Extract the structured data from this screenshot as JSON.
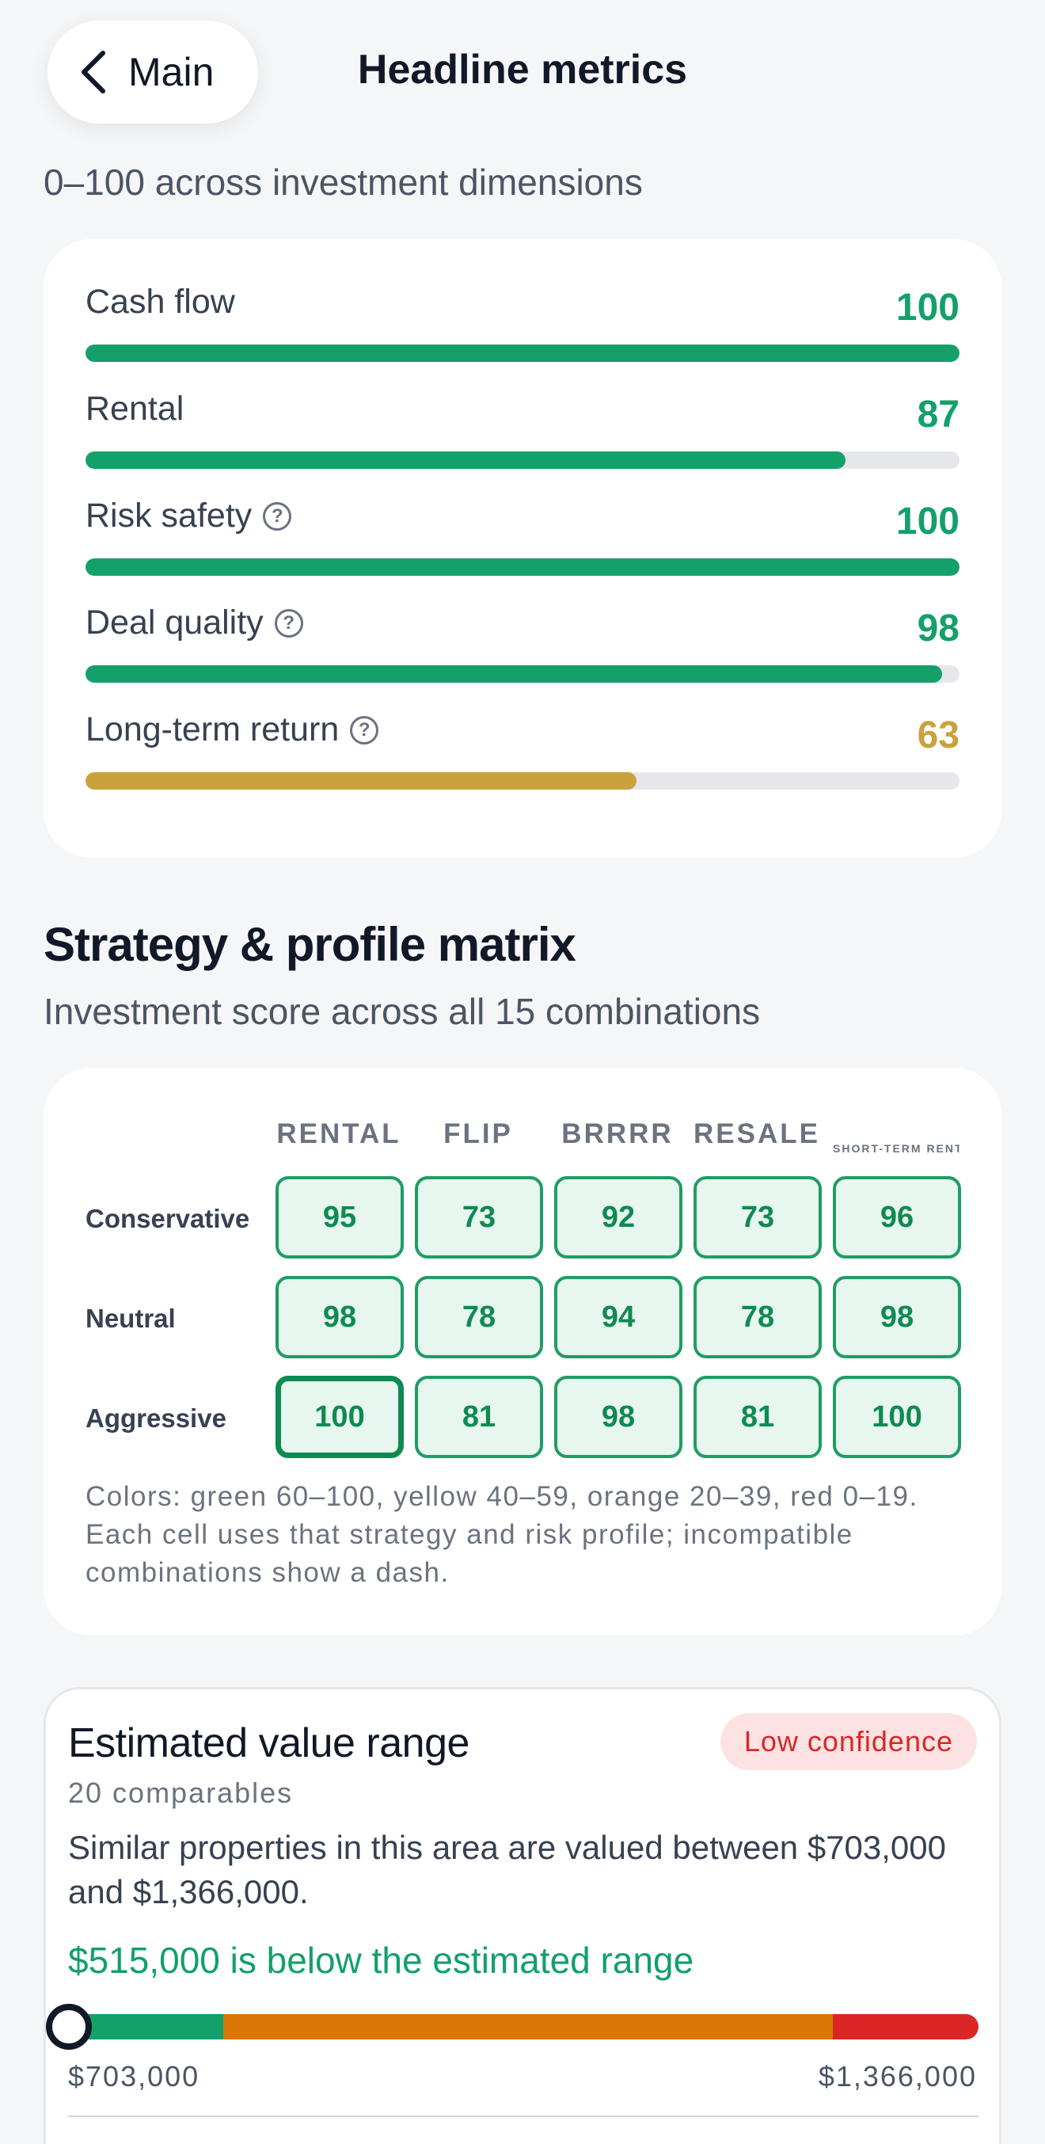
{
  "header": {
    "back_label": "Main",
    "title": "Headline metrics"
  },
  "metrics_subtitle": "0–100 across investment dimensions",
  "metrics": [
    {
      "label": "Cash flow",
      "value": "100",
      "fraction": 1.0,
      "color": "#14a06a",
      "help": false
    },
    {
      "label": "Rental",
      "value": "87",
      "fraction": 0.87,
      "color": "#14a06a",
      "help": false
    },
    {
      "label": "Risk safety",
      "value": "100",
      "fraction": 1.0,
      "color": "#14a06a",
      "help": true
    },
    {
      "label": "Deal quality",
      "value": "98",
      "fraction": 0.98,
      "color": "#14a06a",
      "help": true
    },
    {
      "label": "Long-term return",
      "value": "63",
      "fraction": 0.63,
      "color": "#c9a23c",
      "help": true
    }
  ],
  "matrix": {
    "title": "Strategy & profile matrix",
    "subtitle": "Investment score across all 15 combinations",
    "columns": [
      "RENTAL",
      "FLIP",
      "BRRRR",
      "RESALE",
      "SHORT-TERM RENT..."
    ],
    "rows": [
      {
        "label": "Conservative",
        "values": [
          "95",
          "73",
          "92",
          "73",
          "96"
        ]
      },
      {
        "label": "Neutral",
        "values": [
          "98",
          "78",
          "94",
          "78",
          "98"
        ]
      },
      {
        "label": "Aggressive",
        "values": [
          "100",
          "81",
          "98",
          "81",
          "100"
        ]
      }
    ],
    "selected_cell": "Aggressive / RENTAL",
    "note": "Colors: green 60–100, yellow 40–59, orange 20–39, red 0–19. Each cell uses that strategy and risk profile; incompatible combinations show a dash."
  },
  "value_range": {
    "title": "Estimated value range",
    "confidence": "Low confidence",
    "comparables": "20 comparables",
    "description": "Similar properties in this area are valued between $703,000 and $1,366,000.",
    "verdict": "$515,000 is below the estimated range",
    "low": "$703,000",
    "high": "$1,366,000",
    "segments": [
      {
        "fraction": 0.17,
        "color": "#14a06a"
      },
      {
        "fraction": 0.67,
        "color": "#d97706"
      },
      {
        "fraction": 0.16,
        "color": "#dc2626"
      }
    ]
  }
}
